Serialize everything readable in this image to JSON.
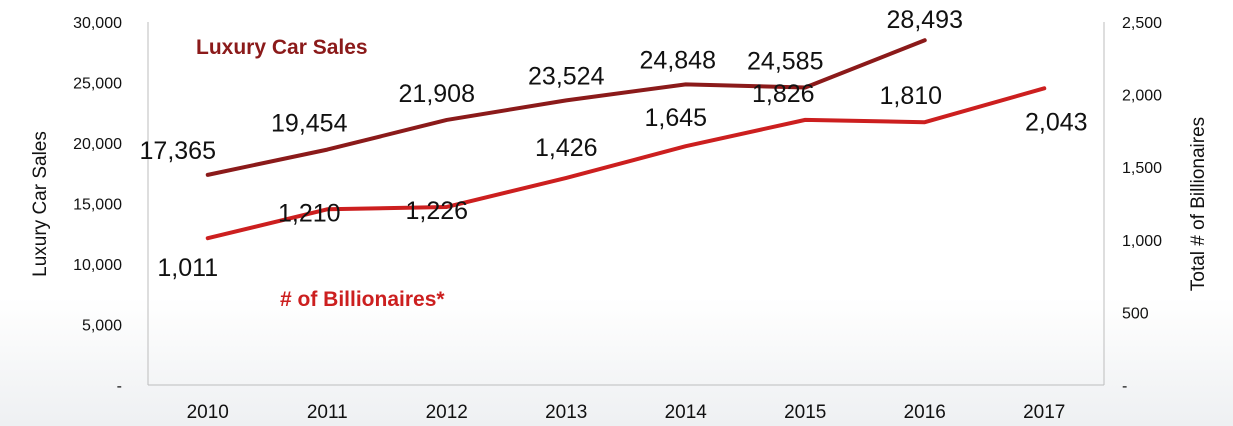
{
  "chart_data": {
    "type": "line",
    "categories": [
      "2010",
      "2011",
      "2012",
      "2013",
      "2014",
      "2015",
      "2016",
      "2017"
    ],
    "series": [
      {
        "name": "Luxury Car Sales",
        "axis": "left",
        "color": "#8b1a1a",
        "values": [
          17365,
          19454,
          21908,
          23524,
          24848,
          24585,
          28493,
          null
        ],
        "labels": [
          "17,365",
          "19,454",
          "21,908",
          "23,524",
          "24,848",
          "24,585",
          "28,493",
          ""
        ]
      },
      {
        "name": "# of Billionaires*",
        "axis": "right",
        "color": "#cc1f1f",
        "values": [
          1011,
          1210,
          1226,
          1426,
          1645,
          1826,
          1810,
          2043
        ],
        "labels": [
          "1,011",
          "1,210",
          "1,226",
          "1,426",
          "1,645",
          "1,826",
          "1,810",
          "2,043"
        ]
      }
    ],
    "ylabel": "Luxury Car Sales",
    "y2label": "Total # of Billionaires",
    "ylim": [
      0,
      30000
    ],
    "y2lim": [
      0,
      2500
    ],
    "yticks": [
      "-",
      "5,000",
      "10,000",
      "15,000",
      "20,000",
      "25,000",
      "30,000"
    ],
    "y2ticks": [
      "-",
      "500",
      "1,000",
      "1,500",
      "2,000",
      "2,500"
    ],
    "grid": false
  }
}
